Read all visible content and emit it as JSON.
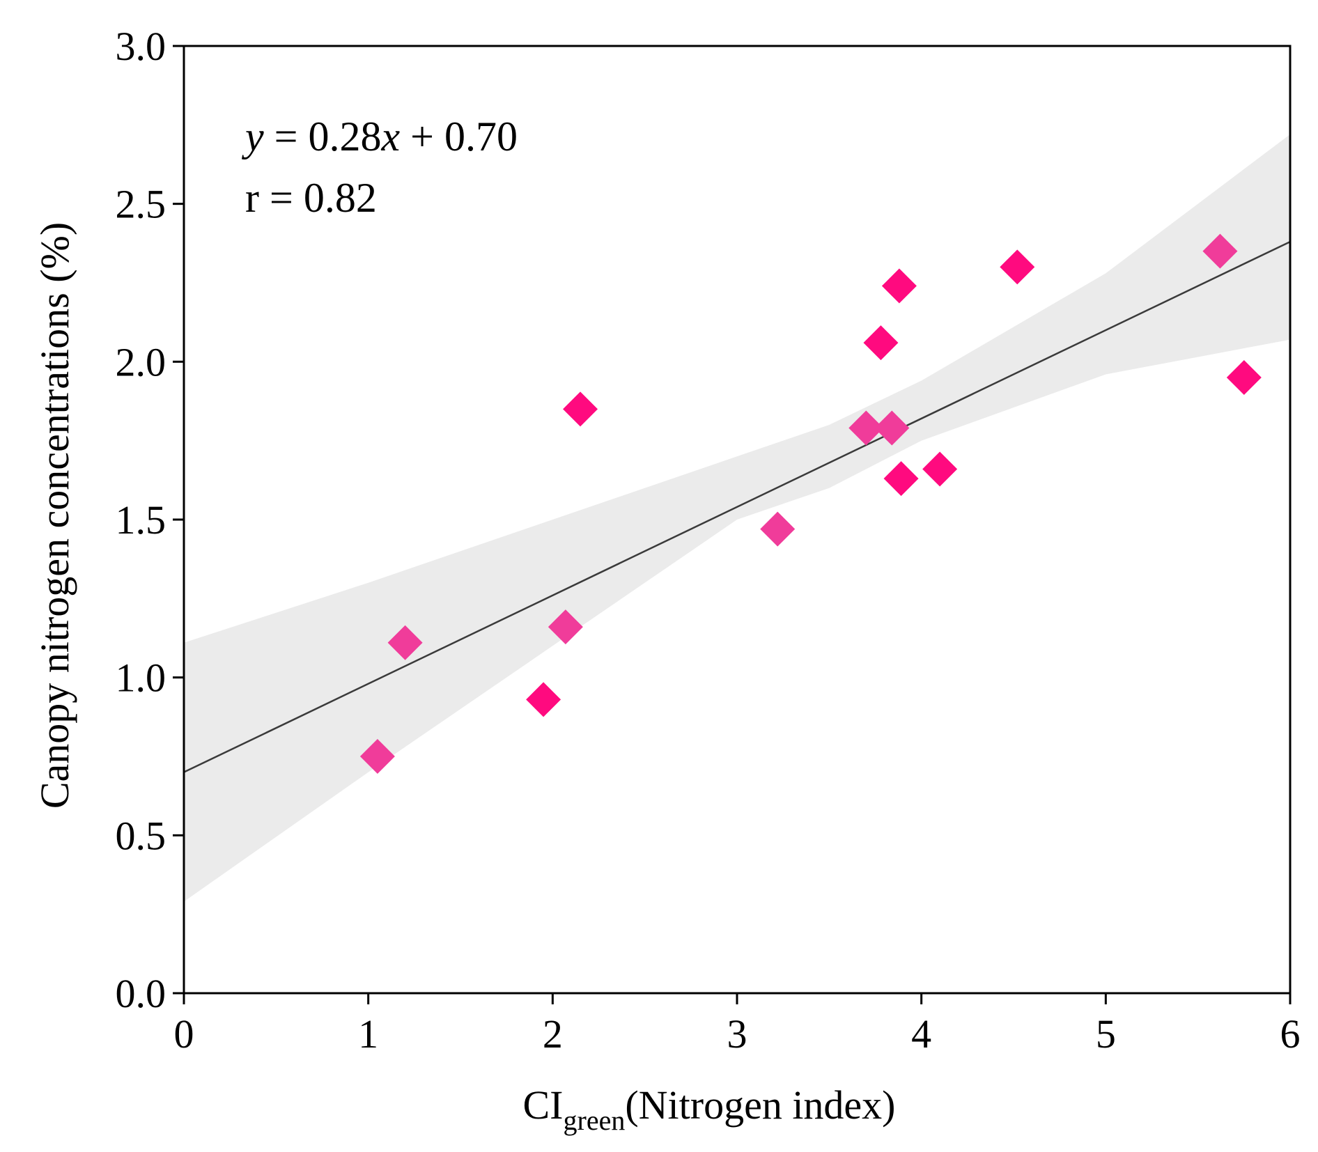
{
  "chart_data": {
    "type": "scatter",
    "xlabel_main": "CI",
    "xlabel_sub": "green",
    "xlabel_rest": "(Nitrogen index)",
    "ylabel": "Canopy nitrogen concentrations (%)",
    "xlim": [
      0,
      6
    ],
    "ylim": [
      0,
      3
    ],
    "x_ticks": [
      "0",
      "1",
      "2",
      "3",
      "4",
      "5",
      "6"
    ],
    "y_ticks": [
      "0.0",
      "0.5",
      "1.0",
      "1.5",
      "2.0",
      "2.5",
      "3.0"
    ],
    "equation": {
      "var_y": "y",
      "eq_mid": " = 0.28",
      "var_x": "x",
      "eq_tail": " + 0.70"
    },
    "r_label": "r = 0.82",
    "fit": {
      "slope": 0.28,
      "intercept": 0.7
    },
    "confidence_band": {
      "x": [
        0,
        1,
        2,
        3,
        3.5,
        4,
        5,
        6
      ],
      "upper": [
        1.11,
        1.3,
        1.5,
        1.7,
        1.8,
        1.94,
        2.28,
        2.72
      ],
      "lower": [
        0.29,
        0.7,
        1.1,
        1.5,
        1.6,
        1.75,
        1.96,
        2.07
      ]
    },
    "points": [
      {
        "x": 1.05,
        "y": 0.75,
        "group": "b"
      },
      {
        "x": 1.2,
        "y": 1.11,
        "group": "b"
      },
      {
        "x": 1.95,
        "y": 0.93,
        "group": "a"
      },
      {
        "x": 2.07,
        "y": 1.16,
        "group": "b"
      },
      {
        "x": 2.15,
        "y": 1.85,
        "group": "a"
      },
      {
        "x": 3.22,
        "y": 1.47,
        "group": "b"
      },
      {
        "x": 3.7,
        "y": 1.79,
        "group": "b"
      },
      {
        "x": 3.78,
        "y": 2.06,
        "group": "a"
      },
      {
        "x": 3.84,
        "y": 1.79,
        "group": "b"
      },
      {
        "x": 3.88,
        "y": 2.24,
        "group": "a"
      },
      {
        "x": 3.89,
        "y": 1.63,
        "group": "a"
      },
      {
        "x": 4.1,
        "y": 1.66,
        "group": "a"
      },
      {
        "x": 4.52,
        "y": 2.3,
        "group": "a"
      },
      {
        "x": 5.62,
        "y": 2.35,
        "group": "b"
      },
      {
        "x": 5.75,
        "y": 1.95,
        "group": "a"
      }
    ],
    "colors": {
      "a": "#ff0a7f",
      "b": "#f03c9a",
      "band": "#ebebeb",
      "line": "#3a3a3a",
      "axis": "#000000"
    }
  }
}
